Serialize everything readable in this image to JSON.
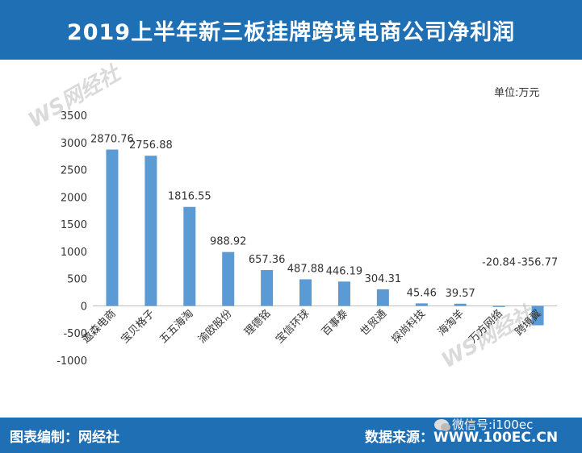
{
  "header": {
    "title": "2019上半年新三板挂牌跨境电商公司净利润"
  },
  "unit_label": "单位:万元",
  "watermarks": {
    "brand": "WS网经社"
  },
  "footer": {
    "left": "图表编制：网经社",
    "right": "数据来源：WWW.100EC.CN",
    "wechat": "微信号:i100ec"
  },
  "colors": {
    "header_bg": "#1f6fb5",
    "bar": "#5b9bd5",
    "footer_bg": "#1f6fb5"
  },
  "chart_data": {
    "type": "bar",
    "title": "2019上半年新三板挂牌跨境电商公司净利润",
    "ylabel": "单位:万元",
    "ylim": [
      -1000,
      3500
    ],
    "yticks": [
      3500,
      3000,
      2500,
      2000,
      1500,
      1000,
      500,
      0,
      -500,
      -1000
    ],
    "ytick_labels": [
      "3500",
      "3000",
      "2500",
      "2000",
      "1500",
      "1000",
      "500",
      "0",
      "-500",
      "-1000"
    ],
    "categories": [
      "遨森电商",
      "宝贝格子",
      "五五海淘",
      "渝欧股份",
      "理德铭",
      "宝信环球",
      "百事泰",
      "世贸通",
      "探尚科技",
      "海淘羊",
      "万方网络",
      "跨境翼"
    ],
    "values": [
      2870.76,
      2756.88,
      1816.55,
      988.92,
      657.36,
      487.88,
      446.19,
      304.31,
      45.46,
      39.57,
      -20.84,
      -356.77
    ],
    "labels": [
      "2870.76",
      "2756.88",
      "1816.55",
      "988.92",
      "657.36",
      "487.88",
      "446.19",
      "304.31",
      "45.46",
      "39.57",
      "-20.84",
      "-356.77"
    ],
    "grid": false,
    "legend": "none"
  }
}
